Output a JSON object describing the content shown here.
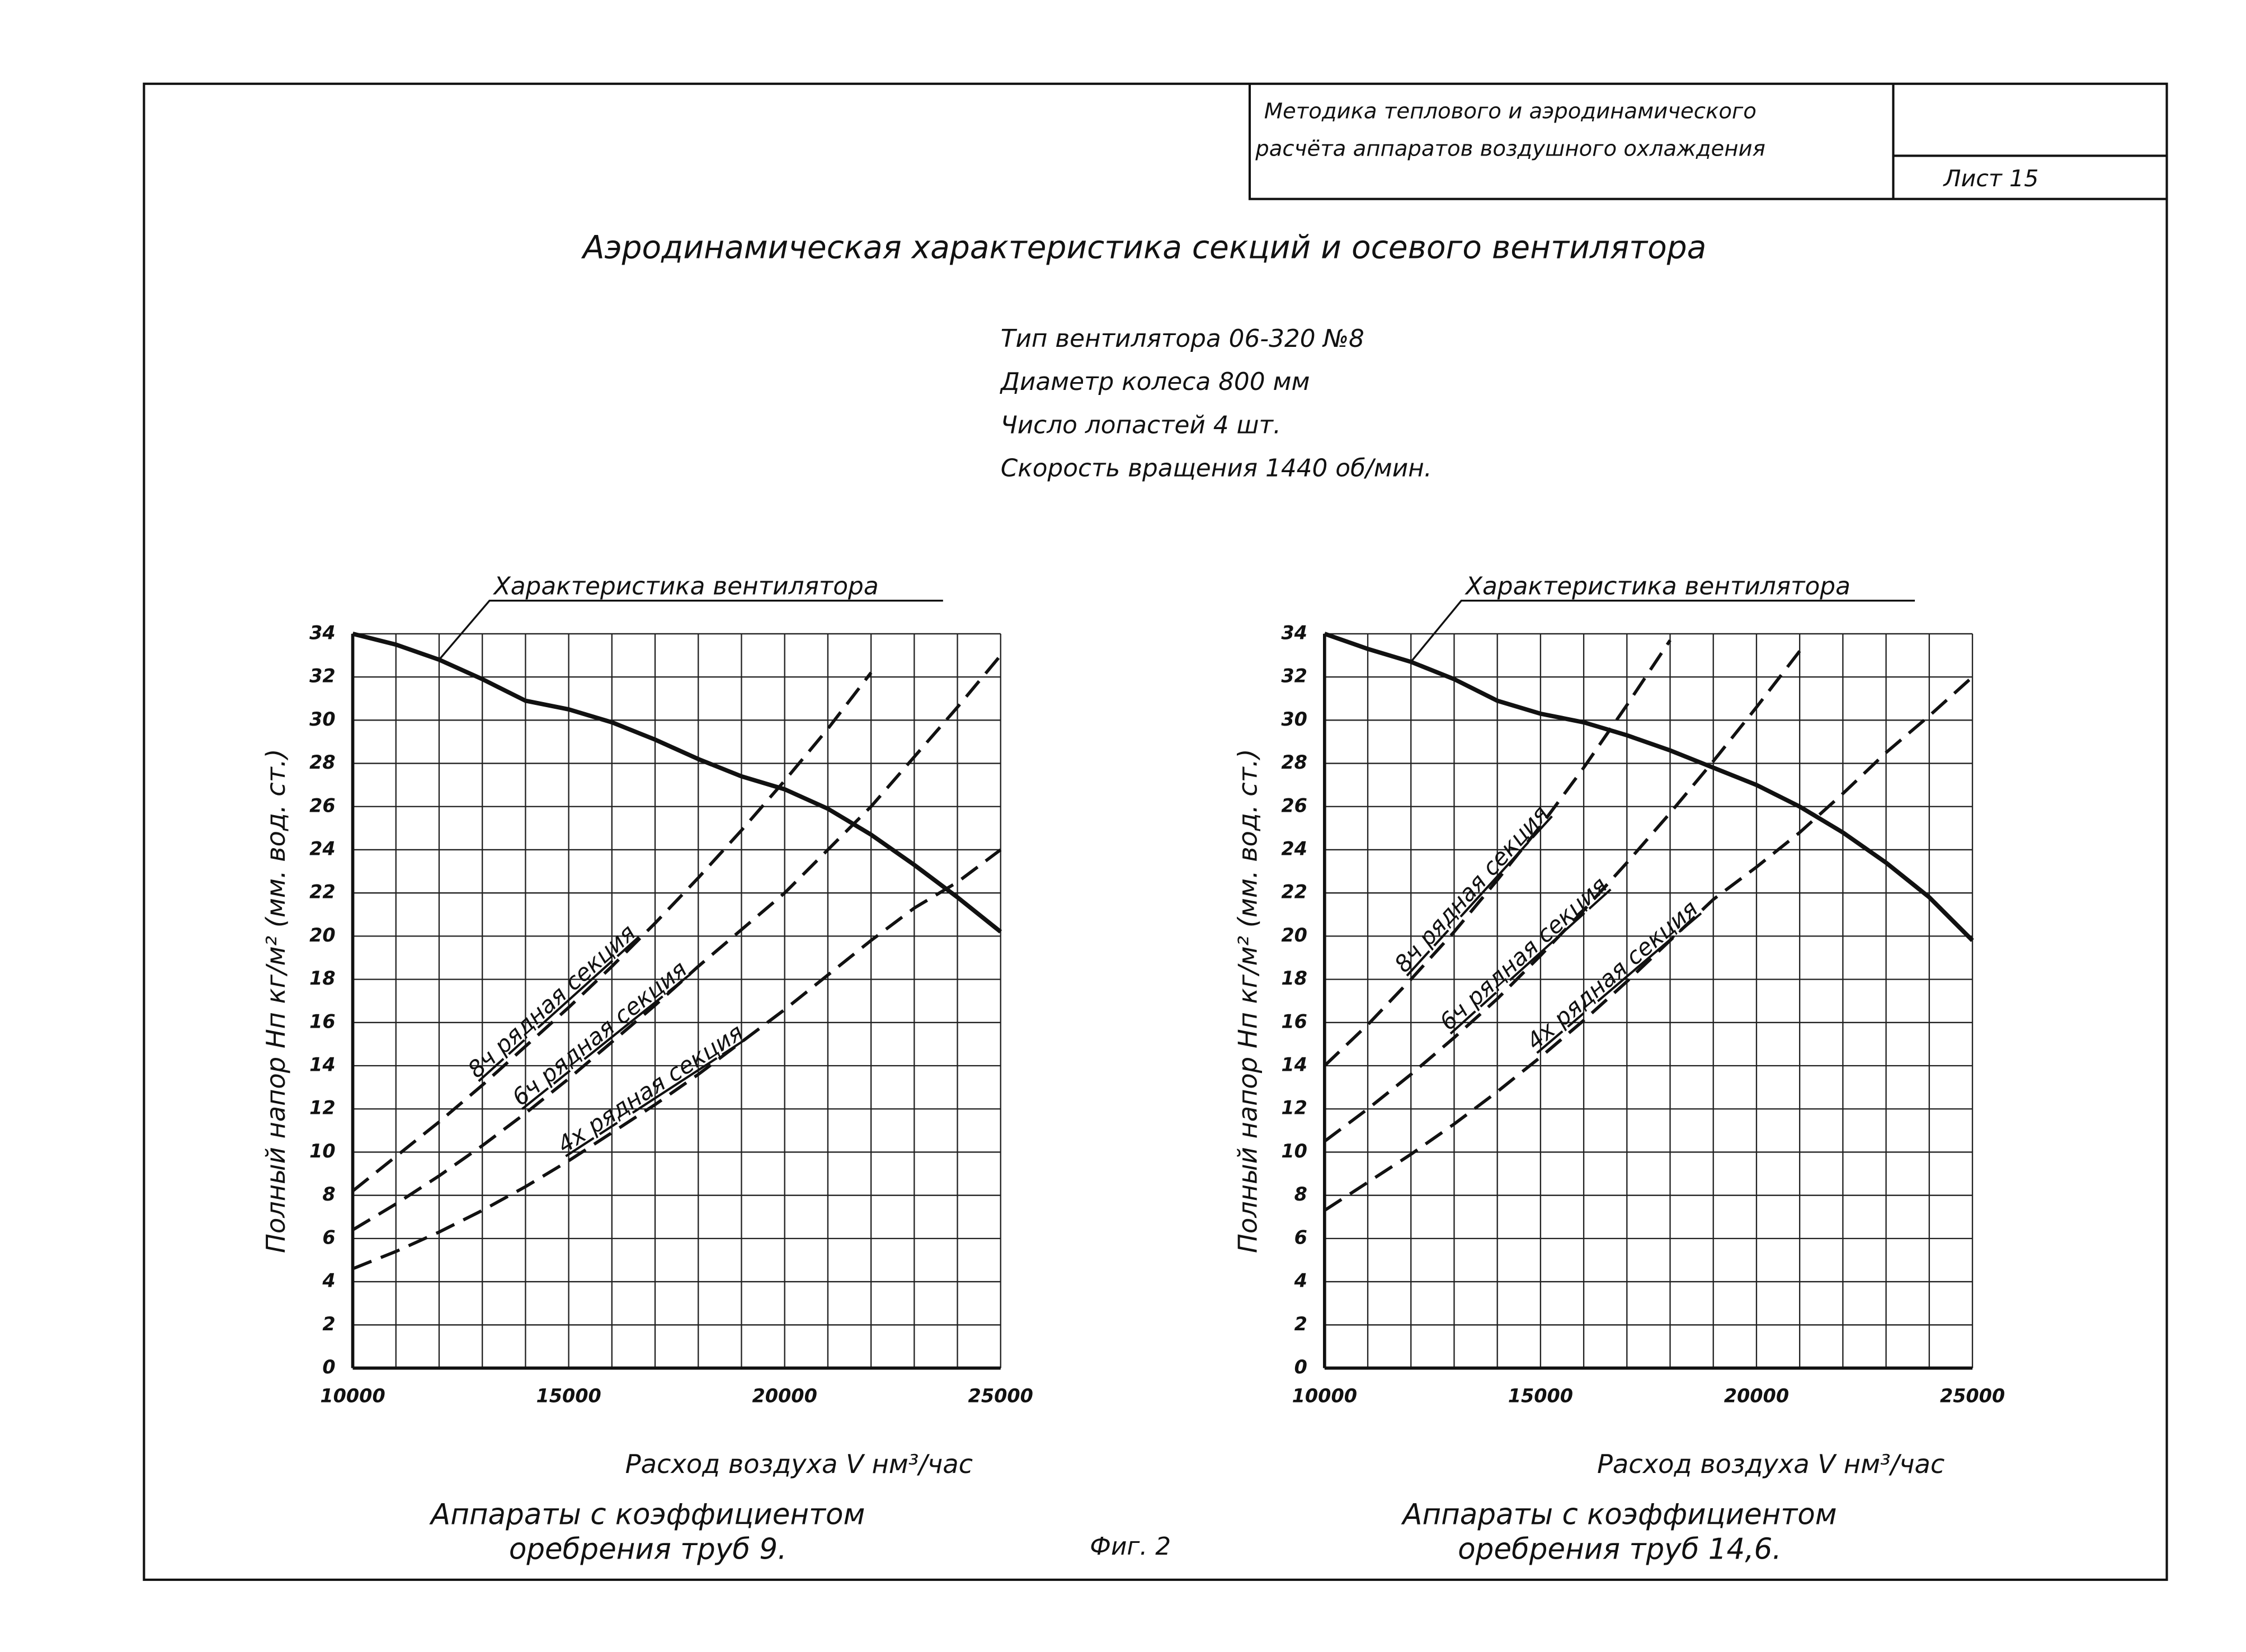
{
  "header": {
    "method_lines": [
      "Методика теплового и аэродинамического",
      "расчёта аппаратов воздушного охлаждения"
    ],
    "sheet": "Лист 15"
  },
  "title": "Аэродинамическая характеристика секций и осевого вентилятора",
  "specs": [
    "Тип вентилятора 06-320 №8",
    "Диаметр колеса 800 мм",
    "Число лопастей 4 шт.",
    "Скорость вращения 1440 об/мин."
  ],
  "figure_label": "Фиг. 2",
  "chart_data": [
    {
      "type": "line",
      "caption": [
        "Аппараты с коэффициентом",
        "оребрения труб 9."
      ],
      "x_label": "Расход воздуха V нм³/час",
      "y_label": "Полный напор Hп кг/м² (мм. вод. ст.)",
      "x": [
        10000,
        11000,
        12000,
        13000,
        14000,
        15000,
        16000,
        17000,
        18000,
        19000,
        20000,
        21000,
        22000,
        23000,
        24000,
        25000
      ],
      "xlim": [
        10000,
        25000
      ],
      "xticks": [
        10000,
        15000,
        20000,
        25000
      ],
      "ylim": [
        0,
        34
      ],
      "yticks": [
        0,
        2,
        4,
        6,
        8,
        10,
        12,
        14,
        16,
        18,
        20,
        22,
        24,
        26,
        28,
        30,
        32,
        34
      ],
      "grid": true,
      "series": [
        {
          "name": "Характеристика вентилятора",
          "color": "#111111",
          "style": "solid",
          "values": [
            34,
            33.5,
            32.8,
            31.9,
            30.9,
            30.5,
            29.9,
            29.1,
            28.2,
            27.4,
            26.8,
            25.9,
            24.7,
            23.3,
            21.8,
            20.2
          ]
        },
        {
          "name": "8ч рядная секция",
          "color": "#111111",
          "style": "dashed",
          "values": [
            8.2,
            9.8,
            11.4,
            13.1,
            14.9,
            16.7,
            18.6,
            20.6,
            22.7,
            24.9,
            27.2,
            29.6,
            32.2,
            null,
            null,
            null
          ]
        },
        {
          "name": "6ч рядная секция",
          "color": "#111111",
          "style": "dashed",
          "values": [
            6.4,
            7.6,
            8.9,
            10.3,
            11.8,
            13.4,
            15.1,
            16.8,
            18.6,
            20.3,
            22,
            24,
            26,
            28.3,
            30.6,
            33
          ]
        },
        {
          "name": "4х рядная секция",
          "color": "#111111",
          "style": "dashed",
          "values": [
            4.6,
            5.4,
            6.3,
            7.3,
            8.4,
            9.6,
            10.9,
            12.2,
            13.6,
            15.1,
            16.6,
            18.2,
            19.8,
            21.3,
            22.5,
            24
          ]
        }
      ]
    },
    {
      "type": "line",
      "caption": [
        "Аппараты с коэффициентом",
        "оребрения труб 14,6."
      ],
      "x_label": "Расход воздуха V нм³/час",
      "y_label": "Полный напор Hп кг/м² (мм. вод. ст.)",
      "x": [
        10000,
        11000,
        12000,
        13000,
        14000,
        15000,
        16000,
        17000,
        18000,
        19000,
        20000,
        21000,
        22000,
        23000,
        24000,
        25000
      ],
      "xlim": [
        10000,
        25000
      ],
      "xticks": [
        10000,
        15000,
        20000,
        25000
      ],
      "ylim": [
        0,
        34
      ],
      "yticks": [
        0,
        2,
        4,
        6,
        8,
        10,
        12,
        14,
        16,
        18,
        20,
        22,
        24,
        26,
        28,
        30,
        32,
        34
      ],
      "grid": true,
      "series": [
        {
          "name": "Характеристика вентилятора",
          "color": "#111111",
          "style": "solid",
          "values": [
            34,
            33.3,
            32.7,
            31.9,
            30.9,
            30.3,
            29.9,
            29.3,
            28.6,
            27.8,
            27,
            26,
            24.8,
            23.4,
            21.8,
            19.8
          ]
        },
        {
          "name": "8ч рядная секция",
          "color": "#111111",
          "style": "dashed",
          "values": [
            14,
            15.9,
            18,
            20.2,
            22.6,
            25.1,
            27.8,
            30.7,
            33.7,
            null,
            null,
            null,
            null,
            null,
            null,
            null
          ]
        },
        {
          "name": "6ч рядная секция",
          "color": "#111111",
          "style": "dashed",
          "values": [
            10.5,
            12,
            13.6,
            15.3,
            17.1,
            19.1,
            21.2,
            23.4,
            25.7,
            28.1,
            30.6,
            33.2,
            null,
            null,
            null,
            null
          ]
        },
        {
          "name": "4х рядная секция",
          "color": "#111111",
          "style": "dashed",
          "values": [
            7.3,
            8.6,
            9.9,
            11.3,
            12.8,
            14.4,
            16.1,
            17.9,
            19.8,
            21.7,
            23.2,
            24.8,
            26.6,
            28.5,
            30.2,
            32
          ]
        }
      ]
    }
  ]
}
